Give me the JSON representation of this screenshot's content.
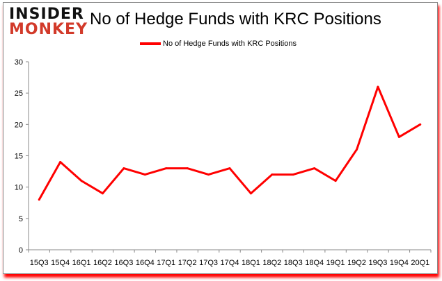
{
  "logo": {
    "line1": "INSIDER",
    "line2": "MONKEY"
  },
  "chart_data": {
    "type": "line",
    "title": "No of Hedge Funds with KRC Positions",
    "categories": [
      "15Q3",
      "15Q4",
      "16Q1",
      "16Q2",
      "16Q3",
      "16Q4",
      "17Q1",
      "17Q2",
      "17Q3",
      "17Q4",
      "18Q1",
      "18Q2",
      "18Q3",
      "18Q4",
      "19Q1",
      "19Q2",
      "19Q3",
      "19Q4",
      "20Q1"
    ],
    "series": [
      {
        "name": "No of Hedge Funds with KRC Positions",
        "values": [
          8,
          14,
          11,
          9,
          13,
          12,
          13,
          13,
          12,
          13,
          9,
          12,
          12,
          13,
          11,
          16,
          26,
          18,
          20
        ],
        "color": "#ff0000"
      }
    ],
    "ylim": [
      0,
      30
    ],
    "yticks": [
      0,
      5,
      10,
      15,
      20,
      25,
      30
    ],
    "grid": false,
    "legend": "top-center"
  }
}
